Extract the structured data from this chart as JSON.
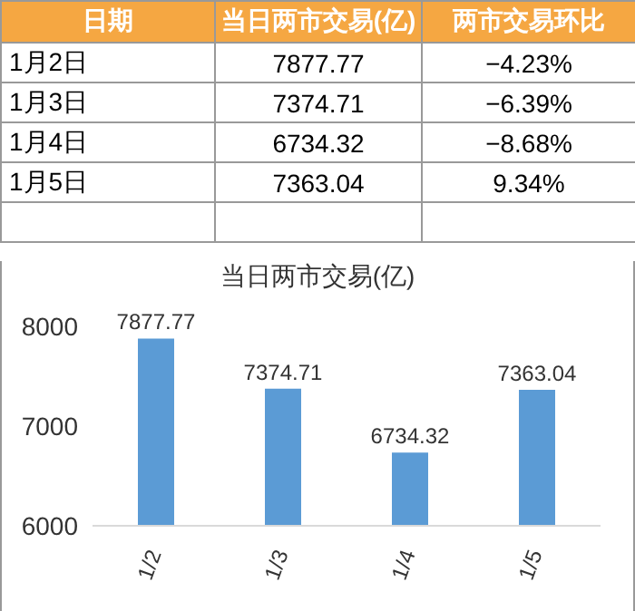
{
  "chart_data": {
    "type": "bar",
    "title": "当日两市交易(亿)",
    "categories": [
      "1/2",
      "1/3",
      "1/4",
      "1/5"
    ],
    "values": [
      7877.77,
      7374.71,
      6734.32,
      7363.04
    ],
    "color": "#5b9bd5",
    "ylim": [
      6000,
      8000
    ],
    "yticks": [
      6000,
      7000,
      8000
    ],
    "data_labels": true,
    "grid": false,
    "legend": false,
    "annotations": [
      "日期",
      "当日两市交易(亿)",
      "两市交易环比",
      "1月2日",
      "1月3日",
      "1月4日",
      "1月5日",
      "−4.23%",
      "−6.39%",
      "−8.68%",
      "9.34%",
      "7877.77",
      "7374.71",
      "6734.32",
      "7363.04"
    ]
  }
}
